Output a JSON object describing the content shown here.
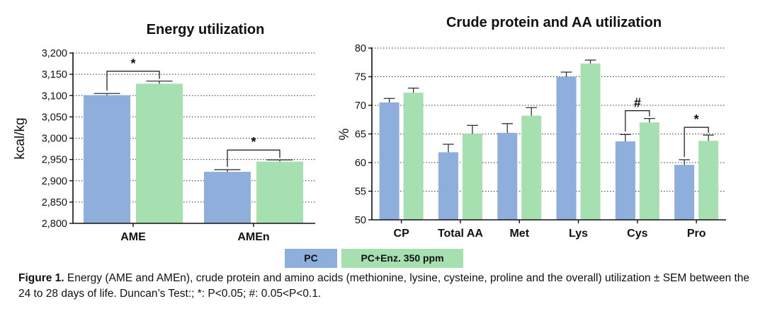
{
  "colors": {
    "pc": "#8eaedb",
    "enz": "#a6dfb0"
  },
  "legend": [
    {
      "label": "PC",
      "color": "#8eaedb"
    },
    {
      "label": "PC+Enz. 350 ppm",
      "color": "#a6dfb0"
    }
  ],
  "caption": {
    "lead": "Figure 1.",
    "text": "Energy (AME and AMEn), crude protein and amino acids (methionine, lysine, cysteine, proline and the overall) utilization ± SEM between the 24 to 28 days of life. Duncan’s Test:; *: P<0.05; #: 0.05<P<0.1."
  },
  "chart_data": [
    {
      "type": "bar",
      "title": "Energy utilization",
      "ylabel": "kcal/kg",
      "ylim": [
        2800,
        3200
      ],
      "yticks": [
        "2,800",
        "2,850",
        "2,900",
        "2,950",
        "3,000",
        "3,050",
        "3,100",
        "3,150",
        "3,200"
      ],
      "grid": true,
      "categories": [
        "AME",
        "AMEn"
      ],
      "series": [
        {
          "name": "PC",
          "values": [
            3101,
            2921
          ],
          "sem": [
            4,
            5
          ]
        },
        {
          "name": "PC+Enz. 350 ppm",
          "values": [
            3128,
            2945
          ],
          "sem": [
            6,
            4
          ]
        }
      ],
      "significance": [
        {
          "category": "AME",
          "mark": "*"
        },
        {
          "category": "AMEn",
          "mark": "*"
        }
      ]
    },
    {
      "type": "bar",
      "title": "Crude protein and AA utilization",
      "ylabel": "%",
      "ylim": [
        50,
        80
      ],
      "yticks": [
        "50",
        "55",
        "60",
        "65",
        "70",
        "75",
        "80"
      ],
      "grid": true,
      "categories": [
        "CP",
        "Total AA",
        "Met",
        "Lys",
        "Cys",
        "Pro"
      ],
      "series": [
        {
          "name": "PC",
          "values": [
            70.5,
            61.8,
            65.2,
            75.0,
            63.7,
            59.6
          ],
          "sem": [
            0.7,
            1.4,
            1.6,
            0.8,
            1.2,
            0.9
          ]
        },
        {
          "name": "PC+Enz. 350 ppm",
          "values": [
            72.2,
            65.0,
            68.2,
            77.3,
            67.0,
            63.8
          ],
          "sem": [
            0.8,
            1.5,
            1.4,
            0.6,
            0.7,
            1.0
          ]
        }
      ],
      "significance": [
        {
          "category": "Cys",
          "mark": "#"
        },
        {
          "category": "Pro",
          "mark": "*"
        }
      ]
    }
  ]
}
